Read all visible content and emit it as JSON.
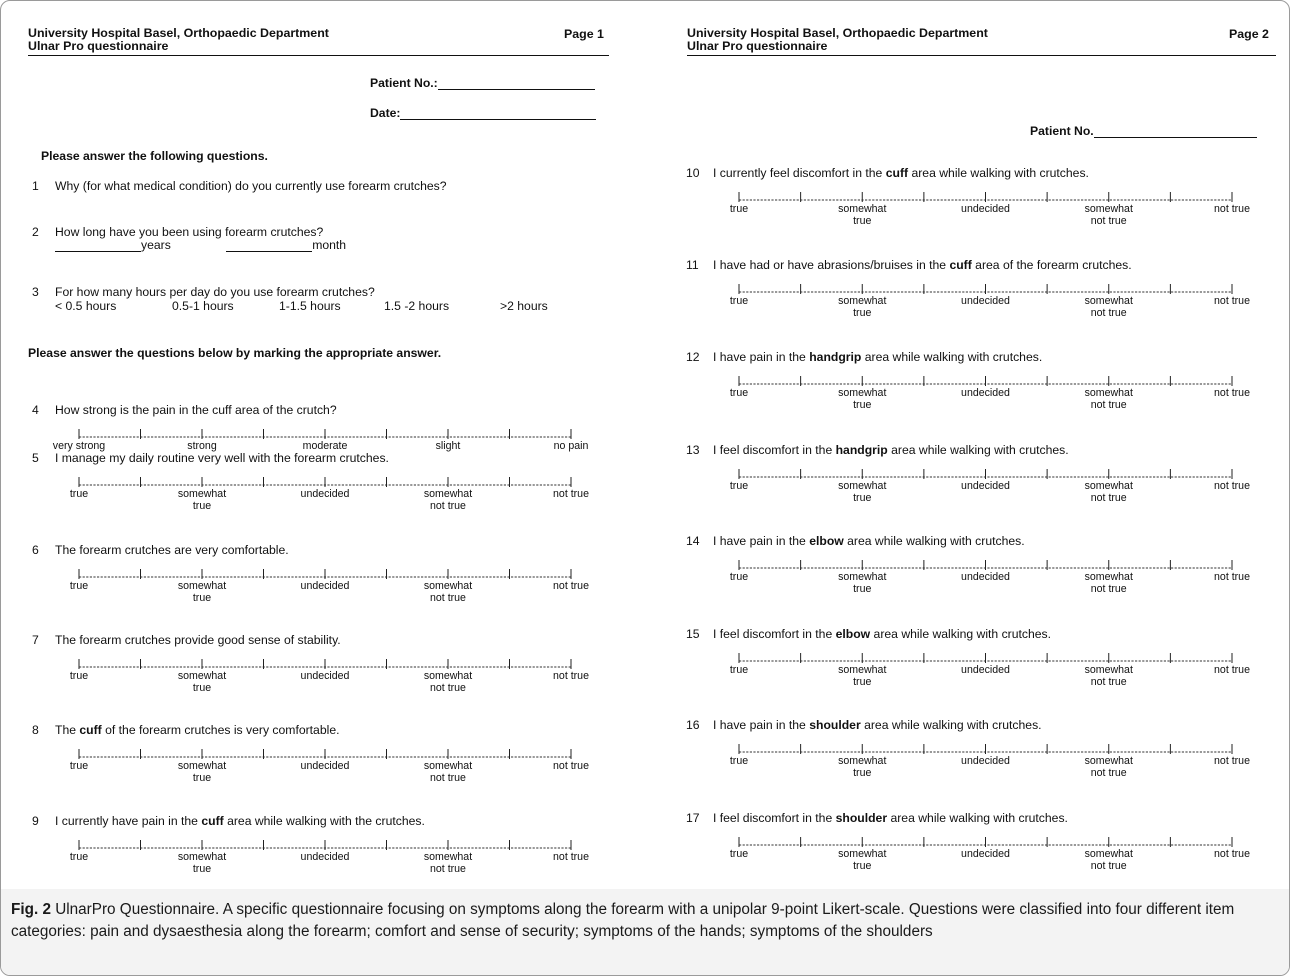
{
  "header": {
    "institution": "University Hospital Basel, Orthopaedic Department",
    "form_title": "Ulnar Pro questionnaire",
    "page1_label": "Page 1",
    "page2_label": "Page 2"
  },
  "page1": {
    "patient_no_label": "Patient No.:",
    "date_label": "Date:",
    "intro": "Please answer the following questions.",
    "q1": {
      "num": "1",
      "text": "Why (for what medical condition) do you currently use forearm crutches?"
    },
    "q2": {
      "num": "2",
      "text": "How long have you been using forearm crutches?",
      "unit_years": "years",
      "unit_month": "month"
    },
    "q3": {
      "num": "3",
      "text": "For how many hours per day do you use forearm crutches?",
      "options": [
        "< 0.5 hours",
        "0.5-1 hours",
        "1-1.5 hours",
        "1.5 -2 hours",
        ">2 hours"
      ]
    },
    "instruction2": "Please answer the questions below by marking the appropriate answer."
  },
  "page2": {
    "patient_no_label": "Patient No."
  },
  "scale_pain_labels": [
    "very strong",
    "strong",
    "moderate",
    "slight",
    "no pain"
  ],
  "scale_agree_labels": [
    {
      "l1": "true",
      "l2": ""
    },
    {
      "l1": "somewhat",
      "l2": "true"
    },
    {
      "l1": "undecided",
      "l2": ""
    },
    {
      "l1": "somewhat",
      "l2": "not true"
    },
    {
      "l1": "not true",
      "l2": ""
    }
  ],
  "scaled_questions": [
    {
      "num": "4",
      "pre": "How strong is the pain in the cuff area of the crutch?",
      "bold": "",
      "post": "",
      "scale": "pain"
    },
    {
      "num": "5",
      "pre": "I manage my daily routine very well with the forearm crutches.",
      "bold": "",
      "post": "",
      "scale": "agree"
    },
    {
      "num": "6",
      "pre": "The forearm crutches are very comfortable.",
      "bold": "",
      "post": "",
      "scale": "agree"
    },
    {
      "num": "7",
      "pre": "The forearm crutches provide good sense of stability.",
      "bold": "",
      "post": "",
      "scale": "agree"
    },
    {
      "num": "8",
      "pre": "The ",
      "bold": "cuff",
      "post": " of the forearm crutches is very comfortable.",
      "scale": "agree"
    },
    {
      "num": "9",
      "pre": "I currently have pain in the ",
      "bold": "cuff",
      "post": " area while walking with the crutches.",
      "scale": "agree"
    },
    {
      "num": "10",
      "pre": "I currently feel discomfort in the ",
      "bold": "cuff",
      "post": " area while walking with crutches.",
      "scale": "agree"
    },
    {
      "num": "11",
      "pre": "I have had or have abrasions/bruises in the ",
      "bold": "cuff",
      "post": " area of the forearm crutches.",
      "scale": "agree"
    },
    {
      "num": "12",
      "pre": "I have pain in the ",
      "bold": "handgrip",
      "post": " area while walking with crutches.",
      "scale": "agree"
    },
    {
      "num": "13",
      "pre": "I feel discomfort in the ",
      "bold": "handgrip",
      "post": " area while walking with crutches.",
      "scale": "agree"
    },
    {
      "num": "14",
      "pre": "I have pain in the ",
      "bold": "elbow",
      "post": " area while walking with crutches.",
      "scale": "agree"
    },
    {
      "num": "15",
      "pre": "I feel discomfort in the ",
      "bold": "elbow",
      "post": " area while walking with crutches.",
      "scale": "agree"
    },
    {
      "num": "16",
      "pre": "I have pain in the ",
      "bold": "shoulder",
      "post": " area while walking with crutches.",
      "scale": "agree"
    },
    {
      "num": "17",
      "pre": "I feel discomfort in the ",
      "bold": "shoulder",
      "post": " area while walking with crutches.",
      "scale": "agree"
    }
  ],
  "caption": {
    "fig_label": "Fig. 2",
    "text": " UlnarPro Questionnaire. A specific questionnaire focusing on symptoms along the forearm with a unipolar 9-point Likert-scale. Questions were classified into four different item categories: pain and dysaesthesia along the forearm; comfort and sense of security; symptoms of the hands; symptoms of the shoulders"
  }
}
